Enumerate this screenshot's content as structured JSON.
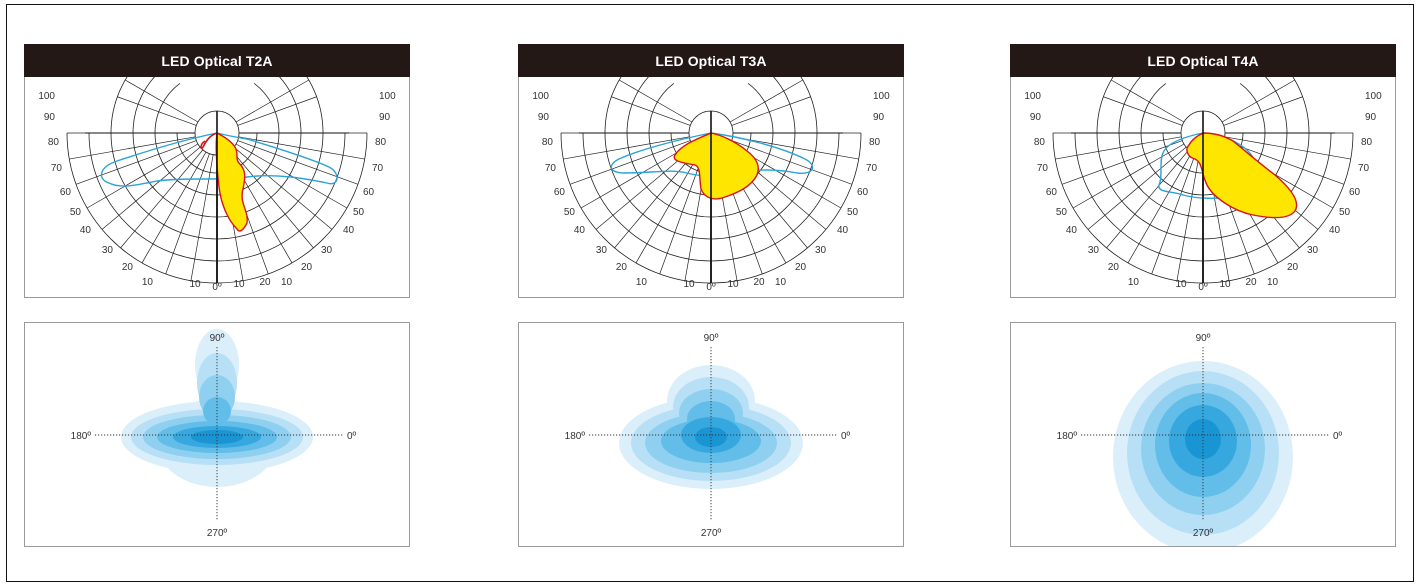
{
  "panels": [
    {
      "id": "t2a",
      "title": "LED Optical T2A",
      "polar_radial_labels": [
        "100",
        "90",
        "80",
        "70",
        "60",
        "50",
        "40",
        "30",
        "20",
        "10"
      ],
      "polar_bottom_labels": [
        "0º",
        "10",
        "10",
        "20"
      ],
      "iso_labels": {
        "top": "90º",
        "left": "180º",
        "right": "0º",
        "bottom": "270º"
      }
    },
    {
      "id": "t3a",
      "title": "LED Optical T3A",
      "polar_radial_labels": [
        "100",
        "90",
        "80",
        "70",
        "60",
        "50",
        "40",
        "30",
        "20",
        "10"
      ],
      "polar_bottom_labels": [
        "0º",
        "10",
        "10",
        "20"
      ],
      "iso_labels": {
        "top": "90º",
        "left": "180º",
        "right": "0º",
        "bottom": "270º"
      }
    },
    {
      "id": "t4a",
      "title": "LED Optical T4A",
      "polar_radial_labels": [
        "100",
        "90",
        "80",
        "70",
        "60",
        "50",
        "40",
        "30",
        "20",
        "10"
      ],
      "polar_bottom_labels": [
        "0º",
        "10",
        "10",
        "20"
      ],
      "iso_labels": {
        "top": "90º",
        "left": "180º",
        "right": "0º",
        "bottom": "270º"
      }
    }
  ],
  "colors": {
    "header_bg": "#231815",
    "header_text": "#ffffff",
    "yellow_fill": "#ffe600",
    "red_curve": "#d7141b",
    "blue_curve": "#2aa4d6",
    "iso_shades": [
      "#dbeffa",
      "#b7e0f6",
      "#8fd0f0",
      "#62bde9",
      "#37a8df",
      "#1a95d3"
    ]
  }
}
